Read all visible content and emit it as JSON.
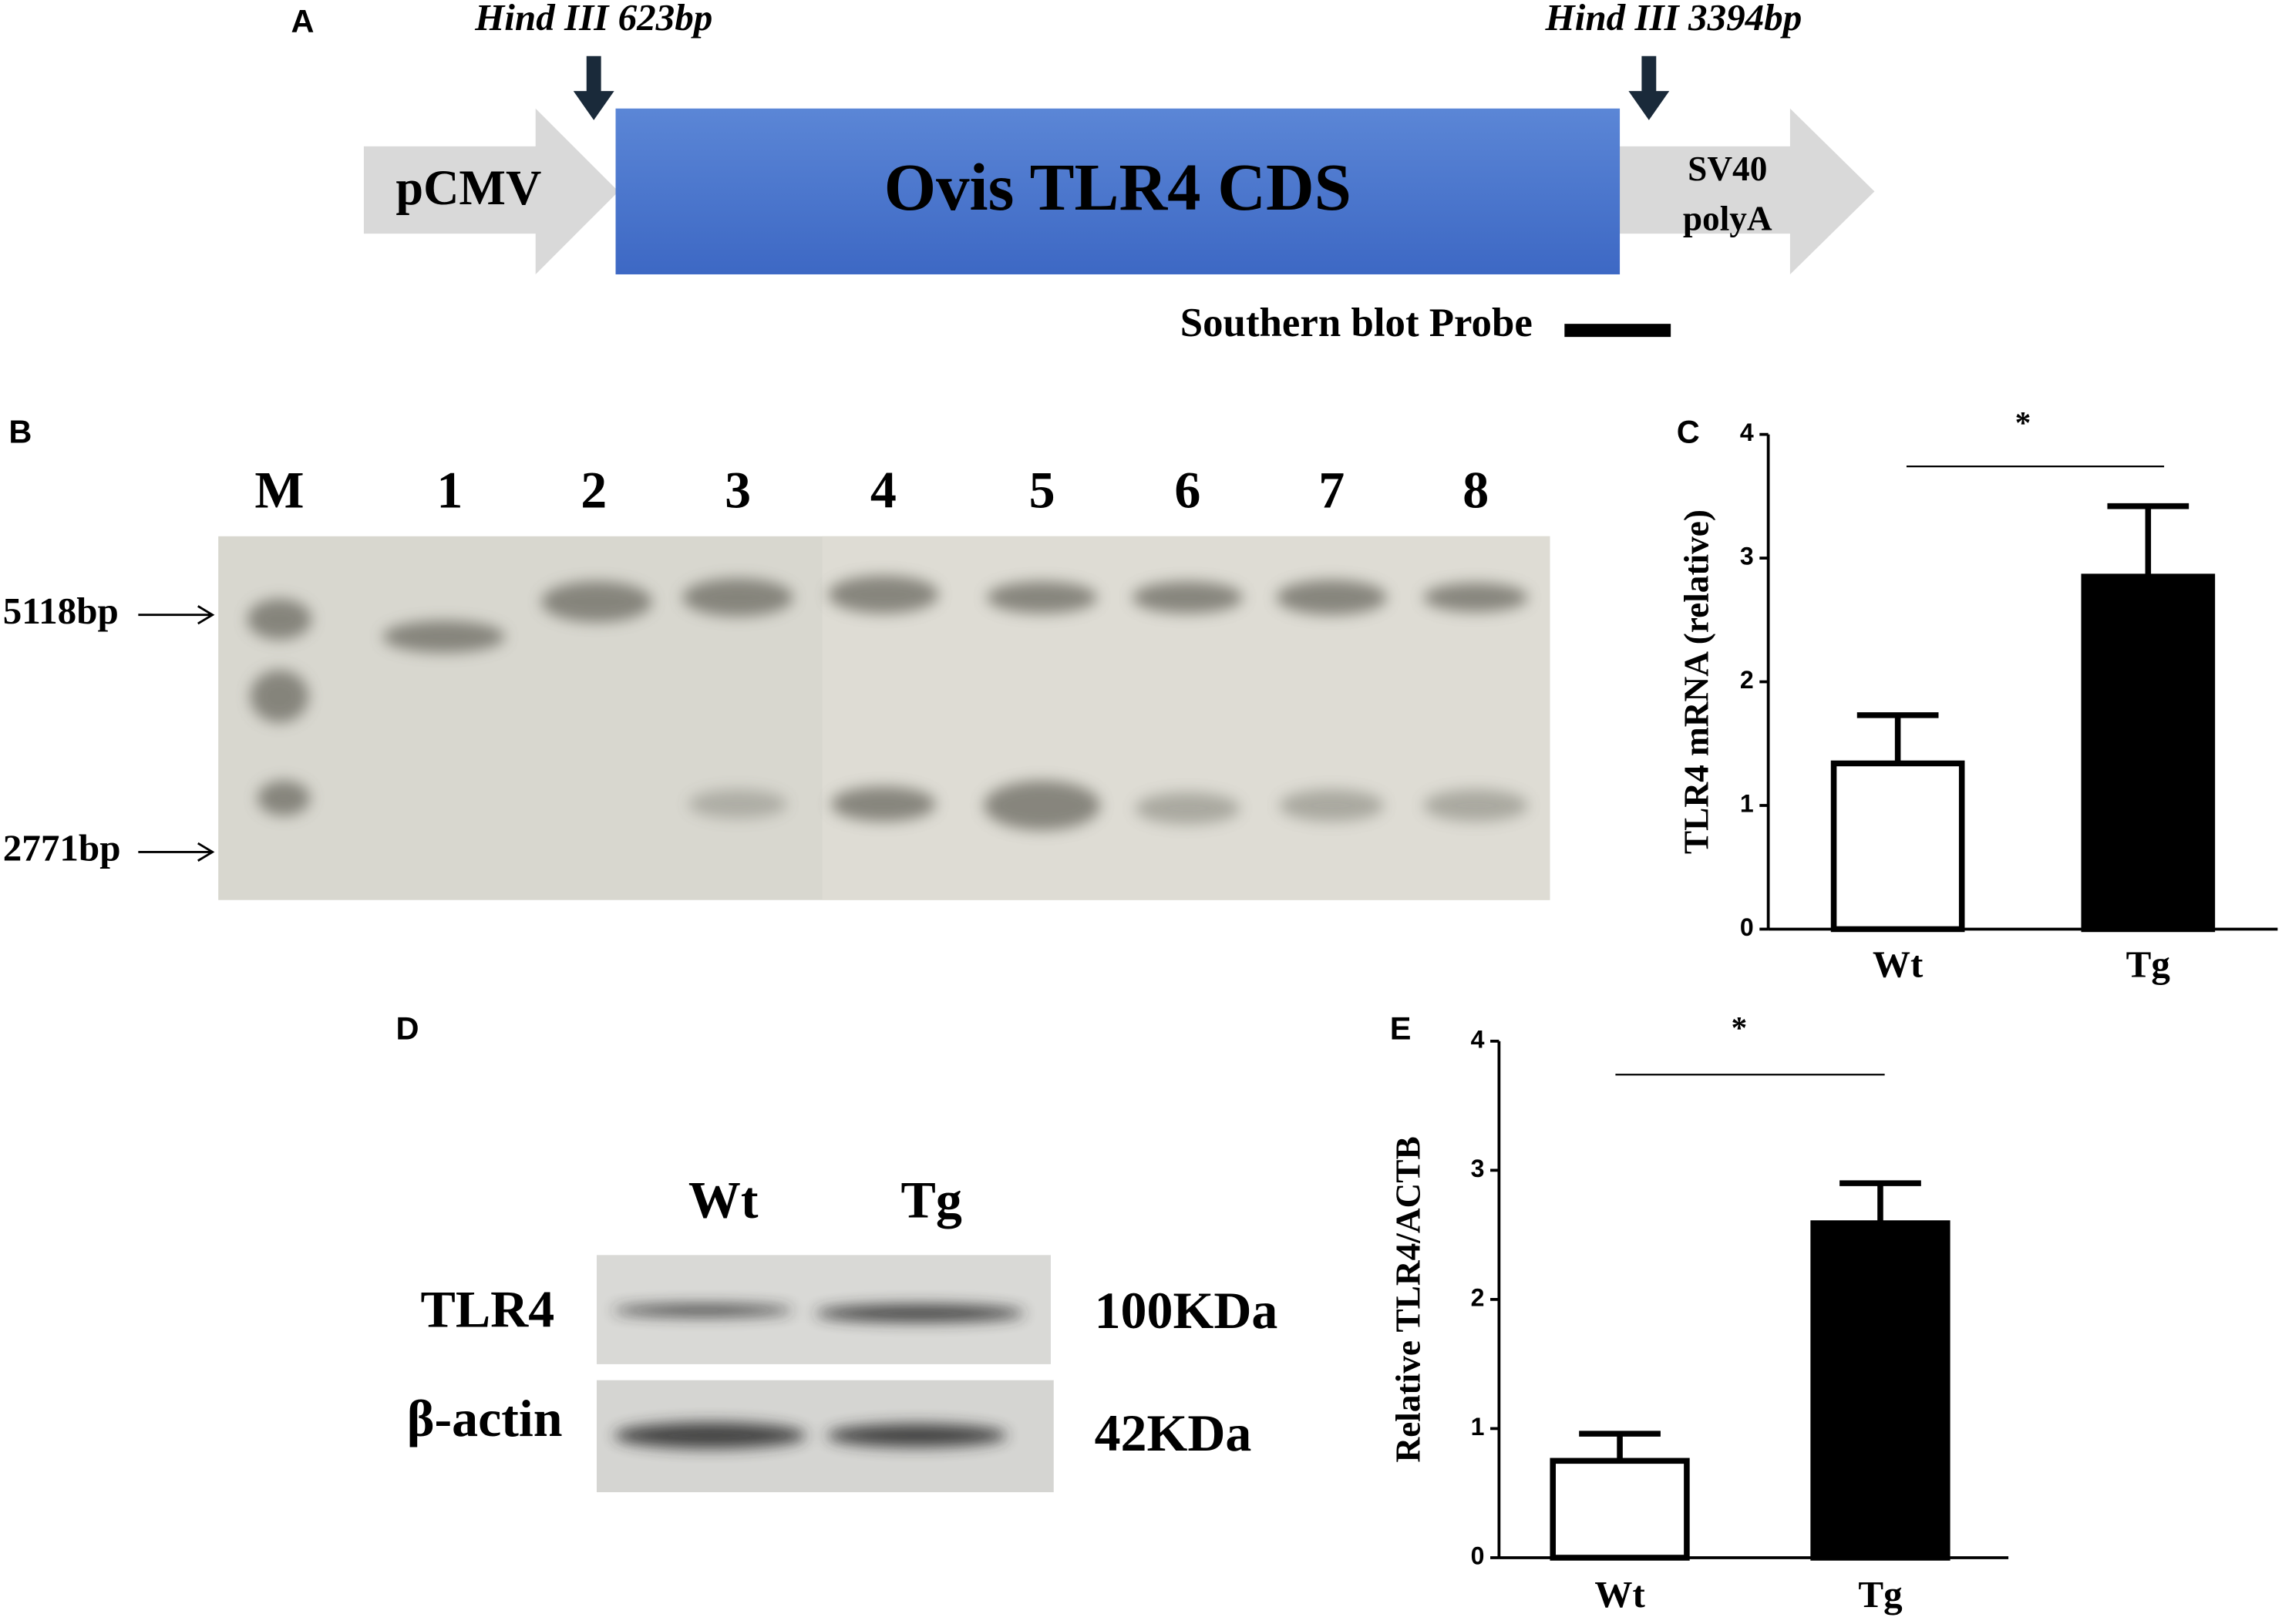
{
  "panel_labels": [
    "A",
    "B",
    "C",
    "D",
    "E"
  ],
  "diagram": {
    "hind_left": "Hind III 623bp",
    "hind_right": "Hind III 3394bp",
    "promoter": "pCMV",
    "cds": "Ovis TLR4 CDS",
    "polya_line1": "SV40",
    "polya_line2": "polyA",
    "probe": "Southern blot Probe"
  },
  "southern": {
    "lanes": [
      "M",
      "1",
      "2",
      "3",
      "4",
      "5",
      "6",
      "7",
      "8"
    ],
    "markers": [
      "5118bp",
      "2771bp"
    ]
  },
  "western": {
    "lanes": [
      "Wt",
      "Tg"
    ],
    "rows": [
      {
        "label": "TLR4",
        "size": "100KDa"
      },
      {
        "label": "β-actin",
        "size": "42KDa"
      }
    ]
  },
  "chart_data": [
    {
      "type": "bar",
      "y_label": "TLR4 mRNA (relative)",
      "categories": [
        "Wt",
        "Tg"
      ],
      "values": [
        1.34,
        2.85
      ],
      "errors": [
        0.39,
        0.57
      ],
      "colors": [
        "#ffffff",
        "#000000"
      ],
      "ylim": [
        0,
        4
      ],
      "yticks": [
        0,
        1,
        2,
        3,
        4
      ],
      "annotation": "*"
    },
    {
      "type": "bar",
      "y_label": "Relative TLR4/ACTB",
      "categories": [
        "Wt",
        "Tg"
      ],
      "values": [
        0.75,
        2.59
      ],
      "errors": [
        0.21,
        0.31
      ],
      "colors": [
        "#ffffff",
        "#000000"
      ],
      "ylim": [
        0,
        4
      ],
      "yticks": [
        0,
        1,
        2,
        3,
        4
      ],
      "annotation": "*"
    }
  ]
}
